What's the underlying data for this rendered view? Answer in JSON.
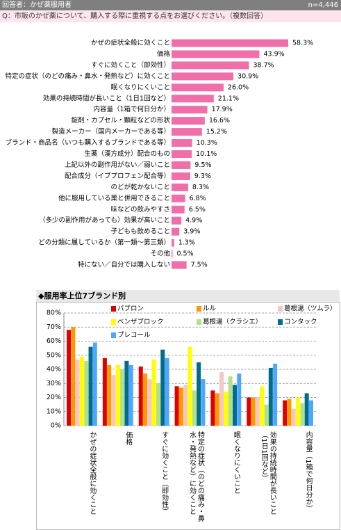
{
  "header": {
    "respondents": "回答者：かぜ薬服用者",
    "n": "n=4,446"
  },
  "question": "Q：市販のかぜ薬について、購入する際に重視する点をお選びください。（複数回答）",
  "chart_data": [
    {
      "type": "bar",
      "orientation": "horizontal",
      "color": "#f06ea9",
      "categories": [
        "かぜの症状全般に効くこと",
        "価格",
        "すぐに効くこと（即効性）",
        "特定の症状（のどの痛み・鼻水・発熱など）に効くこと",
        "眠くなりにくいこと",
        "効果の持続時間が長いこと（1日1回など）",
        "内容量（1箱で何日分か）",
        "錠剤・カプセル・顆粒などの形状",
        "製造メーカー（国内メーカーである等）",
        "ブランド・商品名（いつも購入するブランドである等）",
        "生薬（漢方成分）配合のもの",
        "上記以外の副作用がない／弱いこと",
        "配合成分（イブプロフェン配合等）",
        "のどが乾かないこと",
        "他に服用している薬と併用できること",
        "味などの飲みやすさ",
        "（多少の副作用があっても）効果が高いこと",
        "子どもも飲めること",
        "どの分類に属しているか（第一類～第三類）",
        "その他",
        "特にない／自分では購入しない"
      ],
      "values": [
        58.3,
        43.9,
        38.7,
        30.9,
        26.0,
        21.1,
        17.9,
        16.6,
        15.2,
        10.3,
        10.1,
        9.5,
        9.3,
        8.3,
        6.8,
        6.5,
        4.9,
        3.9,
        1.3,
        0.5,
        7.5
      ],
      "value_labels": [
        "58.3%",
        "43.9%",
        "38.7%",
        "30.9%",
        "26.0%",
        "21.1%",
        "17.9%",
        "16.6%",
        "15.2%",
        "10.3%",
        "10.1%",
        "9.5%",
        "9.3%",
        "8.3%",
        "6.8%",
        "6.5%",
        "4.9%",
        "3.9%",
        "1.3%",
        "0.5%",
        "7.5%"
      ]
    },
    {
      "type": "bar",
      "orientation": "vertical",
      "title": "◆服用率上位7ブランド別",
      "grid": true,
      "categories": [
        "かぜの症状全般に効くこと",
        "価格",
        "すぐに効くこと（即効性）",
        "特定の症状（のどの痛み・鼻水・発熱など）に効くこと",
        "眠くなりにくいこと",
        "効果の持続時間が長いこと（1日1回など）",
        "内容量（1箱で何日分か）"
      ],
      "ylim": [
        0,
        80
      ],
      "yticks": [
        {
          "value": 0,
          "label": "0%"
        },
        {
          "value": 10,
          "label": "10%"
        },
        {
          "value": 20,
          "label": "20%"
        },
        {
          "value": 30,
          "label": "30%"
        },
        {
          "value": 40,
          "label": "40%"
        },
        {
          "value": 50,
          "label": "50%"
        },
        {
          "value": 60,
          "label": "60%"
        },
        {
          "value": 70,
          "label": "70%"
        },
        {
          "value": 80,
          "label": "80%"
        }
      ],
      "series": [
        {
          "name": "パブロン",
          "color": "#e00000",
          "values": [
            68,
            48,
            42,
            28,
            25,
            20,
            18
          ]
        },
        {
          "name": "ルル",
          "color": "#ff9900",
          "values": [
            70,
            43,
            37,
            27,
            23,
            20,
            19
          ]
        },
        {
          "name": "葛根湯（ツムラ）",
          "color": "#f4c7c3",
          "values": [
            47,
            36,
            33,
            29,
            38,
            20,
            12
          ]
        },
        {
          "name": "ベンザブロック",
          "color": "#ffff00",
          "values": [
            49,
            43,
            47,
            56,
            24,
            28,
            20
          ]
        },
        {
          "name": "葛根湯（クラシエ）",
          "color": "#b5e08a",
          "values": [
            46,
            40,
            30,
            25,
            35,
            15,
            16
          ]
        },
        {
          "name": "コンタック",
          "color": "#006e8a",
          "values": [
            56,
            46,
            54,
            45,
            29,
            41,
            23
          ]
        },
        {
          "name": "プレコール",
          "color": "#4da6ff",
          "values": [
            59,
            43,
            48,
            33,
            37,
            44,
            18
          ]
        }
      ]
    }
  ]
}
